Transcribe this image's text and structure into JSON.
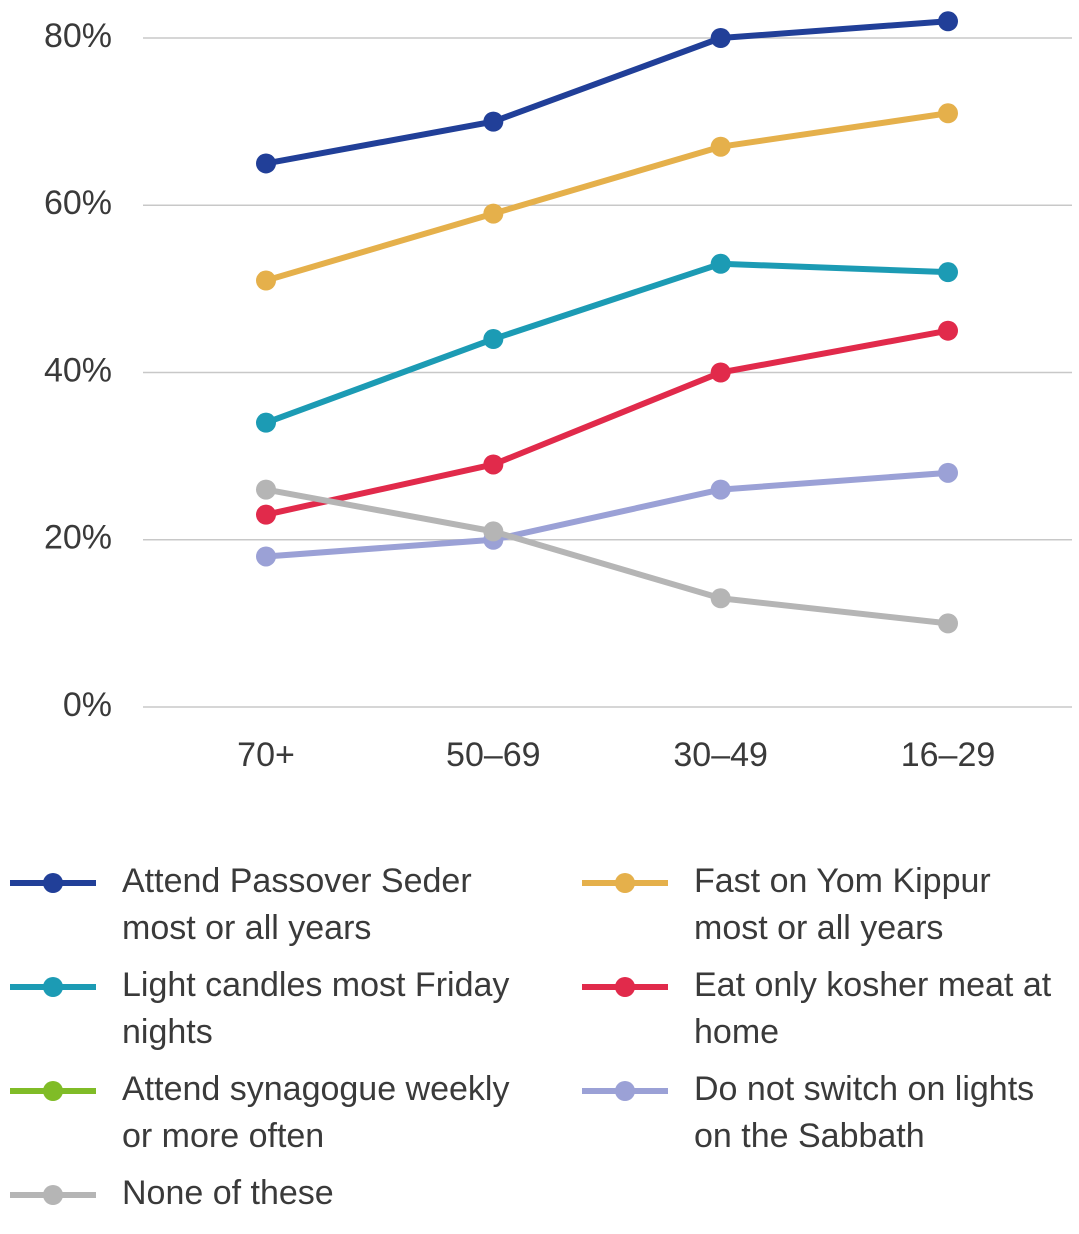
{
  "chart_data": {
    "type": "line",
    "categories": [
      "70+",
      "50–69",
      "30–49",
      "16–29"
    ],
    "ylim": [
      0,
      80
    ],
    "yticks": [
      {
        "value": 0,
        "label": "0%"
      },
      {
        "value": 20,
        "label": "20%"
      },
      {
        "value": 40,
        "label": "40%"
      },
      {
        "value": 60,
        "label": "60%"
      },
      {
        "value": 80,
        "label": "80%"
      }
    ],
    "grid": true,
    "series": [
      {
        "name": "Attend Passover Seder most or all years",
        "color": "#213f98",
        "values": [
          65,
          70,
          80,
          82
        ]
      },
      {
        "name": "Fast on Yom Kippur most or all years",
        "color": "#e5b04b",
        "values": [
          51,
          59,
          67,
          71
        ]
      },
      {
        "name": "Light candles most Friday nights",
        "color": "#1c9bb4",
        "values": [
          34,
          44,
          53,
          52
        ]
      },
      {
        "name": "Eat only kosher meat at home",
        "color": "#e12a4b",
        "values": [
          23,
          29,
          40,
          45
        ]
      },
      {
        "name": "Attend synagogue weekly or more often",
        "color": "#80bc27",
        "values": [
          null,
          null,
          null,
          null
        ]
      },
      {
        "name": "Do not switch on lights on the Sabbath",
        "color": "#9ba1d6",
        "values": [
          18,
          20,
          26,
          28
        ]
      },
      {
        "name": "None of these",
        "color": "#b5b5b5",
        "values": [
          26,
          21,
          13,
          10
        ]
      }
    ]
  }
}
